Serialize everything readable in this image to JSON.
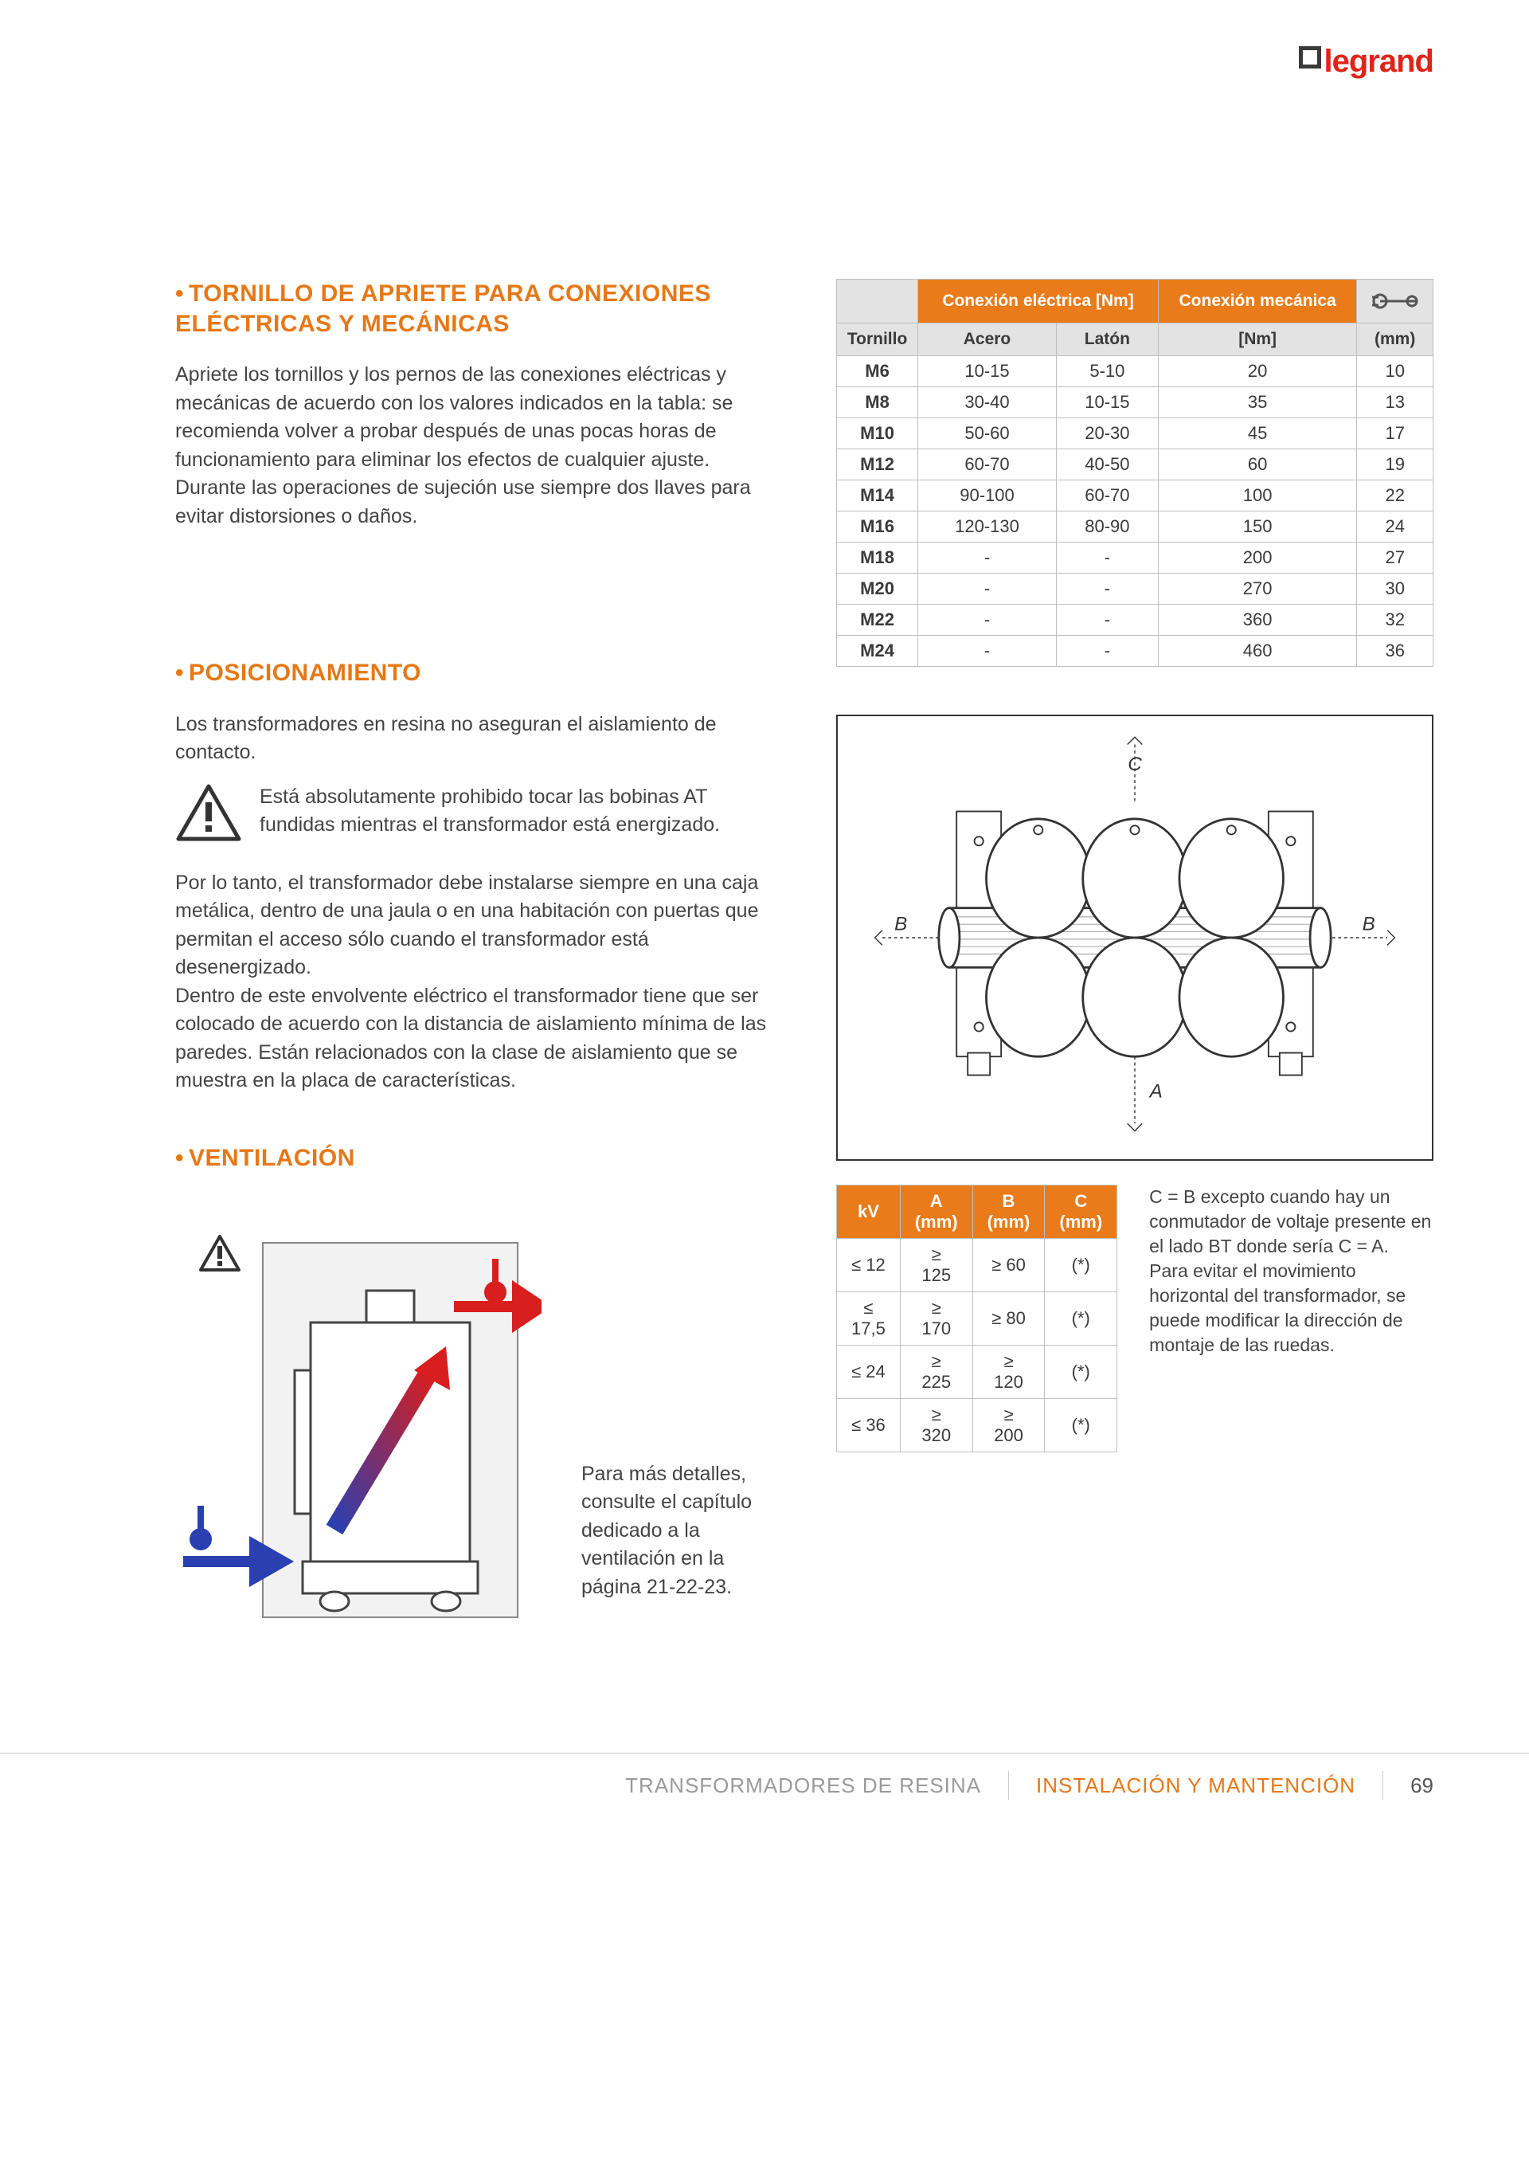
{
  "brand": "legrand",
  "colors": {
    "accent_orange": "#e67817",
    "header_orange": "#ea7b1a",
    "brand_red": "#e22319",
    "text": "#3a3a3a",
    "grid": "#bfbfbf",
    "subhdr_bg": "#e3e3e3"
  },
  "section1": {
    "title": "TORNILLO DE APRIETE PARA CONEXIONES ELÉCTRICAS Y MECÁNICAS",
    "para": "Apriete los tornillos y los pernos de las conexiones eléctricas y mecánicas de acuerdo con los valores indicados en la tabla: se recomienda volver a probar después de unas pocas horas de funcionamiento para eliminar los efectos de cualquier ajuste.\nDurante las operaciones de sujeción use siempre dos llaves para evitar distorsiones o daños."
  },
  "torque_table": {
    "hdr_elec": "Conexión eléctrica [Nm]",
    "hdr_mech": "Conexión mecánica",
    "sub": [
      "Tornillo",
      "Acero",
      "Latón",
      "[Nm]",
      "(mm)"
    ],
    "rows": [
      [
        "M6",
        "10-15",
        "5-10",
        "20",
        "10"
      ],
      [
        "M8",
        "30-40",
        "10-15",
        "35",
        "13"
      ],
      [
        "M10",
        "50-60",
        "20-30",
        "45",
        "17"
      ],
      [
        "M12",
        "60-70",
        "40-50",
        "60",
        "19"
      ],
      [
        "M14",
        "90-100",
        "60-70",
        "100",
        "22"
      ],
      [
        "M16",
        "120-130",
        "80-90",
        "150",
        "24"
      ],
      [
        "M18",
        "-",
        "-",
        "200",
        "27"
      ],
      [
        "M20",
        "-",
        "-",
        "270",
        "30"
      ],
      [
        "M22",
        "-",
        "-",
        "360",
        "32"
      ],
      [
        "M24",
        "-",
        "-",
        "460",
        "36"
      ]
    ]
  },
  "section2": {
    "title": "POSICIONAMIENTO",
    "p1": "Los transformadores en resina no aseguran el aislamiento de contacto.",
    "warn": "Está absolutamente prohibido tocar las bobinas AT fundidas mientras el transformador está energizado.",
    "p2": "Por lo tanto, el transformador debe instalarse siempre en una caja metálica, dentro de una jaula o en una habitación con puertas que permitan el acceso sólo cuando el transformador está desenergizado.\nDentro de este envolvente eléctrico el transformador tiene que ser colocado de acuerdo con la distancia de aislamiento mínima de las paredes. Están relacionados con la clase de aislamiento que se muestra en la placa de características."
  },
  "clearance_table": {
    "headers": [
      "kV",
      "A (mm)",
      "B (mm)",
      "C (mm)"
    ],
    "rows": [
      [
        "≤ 12",
        "≥ 125",
        "≥ 60",
        "(*)"
      ],
      [
        "≤ 17,5",
        "≥ 170",
        "≥ 80",
        "(*)"
      ],
      [
        "≤ 24",
        "≥ 225",
        "≥ 120",
        "(*)"
      ],
      [
        "≤ 36",
        "≥ 320",
        "≥ 200",
        "(*)"
      ]
    ],
    "note": "C = B excepto cuando hay un conmutador de voltaje presente en el lado BT donde sería C = A.\nPara evitar el movimiento horizontal del transformador, se puede modificar la dirección de montaje de las ruedas."
  },
  "diagram_labels": {
    "A": "A",
    "B": "B",
    "C": "C"
  },
  "section3": {
    "title": "VENTILACIÓN",
    "caption": "Para más detalles, consulte el capítulo dedicado a la ventilación en la página 21-22-23."
  },
  "footer": {
    "left": "TRANSFORMADORES DE RESINA",
    "mid": "INSTALACIÓN Y MANTENCIÓN",
    "page": "69"
  }
}
